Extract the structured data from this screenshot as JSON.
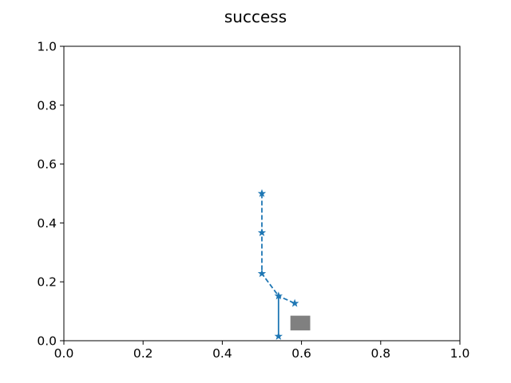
{
  "chart_data": {
    "type": "line",
    "title": "success",
    "xlabel": "",
    "ylabel": "",
    "xlim": [
      0.0,
      1.0
    ],
    "ylim": [
      0.0,
      1.0
    ],
    "grid": false,
    "x_ticks": [
      0.0,
      0.2,
      0.4,
      0.6,
      0.8,
      1.0
    ],
    "y_ticks": [
      0.0,
      0.2,
      0.4,
      0.6,
      0.8,
      1.0
    ],
    "x_tick_labels": [
      "0.0",
      "0.2",
      "0.4",
      "0.6",
      "0.8",
      "1.0"
    ],
    "y_tick_labels": [
      "0.0",
      "0.2",
      "0.4",
      "0.6",
      "0.8",
      "1.0"
    ],
    "series": [
      {
        "color": "#1f77b4",
        "linestyle": "dashed",
        "marker": "star",
        "x": [
          0.5,
          0.5,
          0.5,
          0.542,
          0.542,
          0.583
        ],
        "y": [
          0.5,
          0.367,
          0.228,
          0.152,
          0.015,
          0.127
        ]
      }
    ],
    "path_order": [
      0,
      1,
      2,
      3,
      4,
      3,
      5
    ],
    "patches": [
      {
        "shape": "rectangle",
        "color": "#808080",
        "x_range": [
          0.572,
          0.622
        ],
        "y_range": [
          0.035,
          0.085
        ]
      }
    ]
  }
}
